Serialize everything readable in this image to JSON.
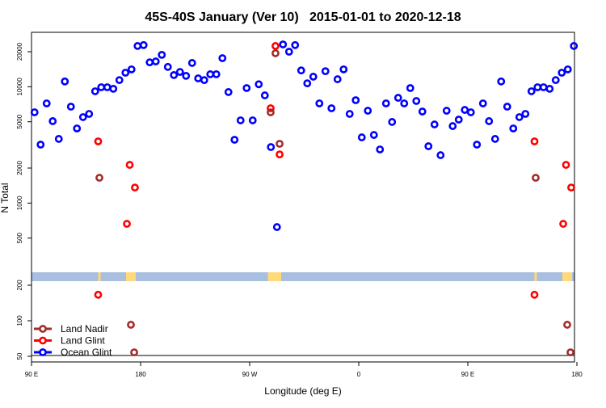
{
  "chart_data": {
    "type": "scatter",
    "title": "45S-40S January (Ver 10)   2015-01-01 to 2020-12-18",
    "xlabel": "Longitude (deg E)",
    "ylabel": "N Total",
    "y_scale": "log",
    "xlim_deg_east_unwrapped": [
      90,
      540
    ],
    "x_ticks": [
      {
        "value": 90,
        "label": "90 E"
      },
      {
        "value": 180,
        "label": "180"
      },
      {
        "value": 270,
        "label": "90 W"
      },
      {
        "value": 360,
        "label": "0"
      },
      {
        "value": 450,
        "label": "90 E"
      },
      {
        "value": 540,
        "label": "180"
      }
    ],
    "upper_panel_yticks": [
      "500",
      "1000",
      "2000",
      "5000",
      "10000",
      "20000"
    ],
    "lower_panel_yticks": [
      "50",
      "100",
      "200"
    ],
    "legend": {
      "placement": "bottom-left",
      "entries": [
        {
          "name": "Land Nadir",
          "color": "#a52a2a"
        },
        {
          "name": "Land Glint",
          "color": "#ff0000"
        },
        {
          "name": "Ocean Glint",
          "color": "#0000ff"
        }
      ]
    },
    "series": [
      {
        "name": "Ocean Glint",
        "color": "#0000ff",
        "points": [
          [
            92.5,
            6030
          ],
          [
            97.5,
            3180
          ],
          [
            102.5,
            7190
          ],
          [
            107.5,
            5060
          ],
          [
            112.5,
            3560
          ],
          [
            117.5,
            11100
          ],
          [
            122.5,
            6740
          ],
          [
            127.5,
            4380
          ],
          [
            132.5,
            5480
          ],
          [
            137.5,
            5840
          ],
          [
            142.5,
            9140
          ],
          [
            147.5,
            9900
          ],
          [
            152.5,
            9900
          ],
          [
            157.5,
            9600
          ],
          [
            162.5,
            11400
          ],
          [
            167.5,
            13200
          ],
          [
            172.5,
            14100
          ],
          [
            177.5,
            22400
          ],
          [
            -177.5,
            22800
          ],
          [
            -172.5,
            16200
          ],
          [
            -167.5,
            16500
          ],
          [
            -162.5,
            18800
          ],
          [
            -157.5,
            14800
          ],
          [
            -152.5,
            12600
          ],
          [
            -147.5,
            13400
          ],
          [
            -142.5,
            12400
          ],
          [
            -137.5,
            16000
          ],
          [
            -132.5,
            11800
          ],
          [
            -127.5,
            11400
          ],
          [
            -122.5,
            12800
          ],
          [
            -117.5,
            12800
          ],
          [
            -112.5,
            17600
          ],
          [
            -107.5,
            9000
          ],
          [
            -102.5,
            3500
          ],
          [
            -97.5,
            5140
          ],
          [
            -92.5,
            9740
          ],
          [
            -87.5,
            5140
          ],
          [
            -82.5,
            10500
          ],
          [
            -77.5,
            8430
          ],
          [
            -72.5,
            3030
          ],
          [
            -67.5,
            622
          ],
          [
            -62.5,
            23100
          ],
          [
            -57.5,
            20000
          ],
          [
            -52.5,
            22800
          ],
          [
            -47.5,
            13800
          ],
          [
            -42.5,
            10700
          ],
          [
            -37.5,
            12200
          ],
          [
            -32.5,
            7190
          ],
          [
            -27.5,
            13600
          ],
          [
            -22.5,
            6530
          ],
          [
            -17.5,
            11600
          ],
          [
            -12.5,
            14100
          ],
          [
            -7.5,
            5840
          ],
          [
            -2.5,
            7660
          ],
          [
            2.5,
            3670
          ],
          [
            7.5,
            6220
          ],
          [
            12.5,
            3850
          ],
          [
            17.5,
            2890
          ],
          [
            22.5,
            7190
          ],
          [
            27.5,
            4980
          ],
          [
            32.5,
            8030
          ],
          [
            37.5,
            7190
          ],
          [
            42.5,
            9740
          ],
          [
            47.5,
            7540
          ],
          [
            52.5,
            6120
          ],
          [
            57.5,
            3080
          ],
          [
            62.5,
            4740
          ],
          [
            67.5,
            2580
          ],
          [
            72.5,
            6220
          ],
          [
            77.5,
            4590
          ],
          [
            82.5,
            5220
          ],
          [
            87.5,
            6320
          ]
        ]
      },
      {
        "name": "Land Glint",
        "color": "#ff0000",
        "points": [
          [
            145,
            3390
          ],
          [
            171,
            2130
          ],
          [
            168.7,
            663
          ],
          [
            175.3,
            1360
          ],
          [
            -68.7,
            22400
          ],
          [
            -72.7,
            6530
          ],
          [
            -65.3,
            2620
          ],
          [
            145,
            166
          ]
        ]
      },
      {
        "name": "Land Nadir",
        "color": "#a52a2a",
        "points": [
          [
            146,
            1650
          ],
          [
            -68.7,
            19400
          ],
          [
            -72.7,
            6030
          ],
          [
            -65.3,
            3230
          ],
          [
            172,
            92.5
          ],
          [
            174.7,
            54
          ]
        ]
      }
    ]
  }
}
